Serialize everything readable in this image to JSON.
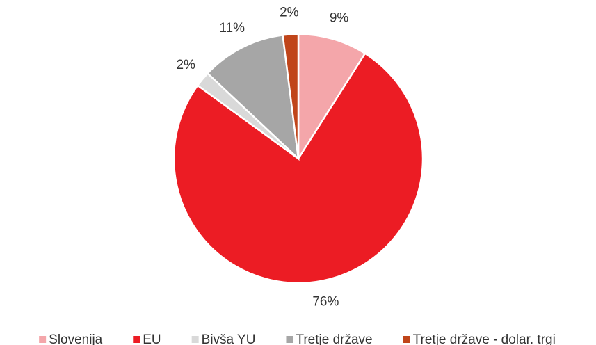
{
  "chart_data": {
    "type": "pie",
    "categories": [
      "Slovenija",
      "EU",
      "Bivša YU",
      "Tretje države",
      "Tretje države - dolar. trgi"
    ],
    "values": [
      9,
      76,
      2,
      11,
      2
    ],
    "value_labels": [
      "9%",
      "76%",
      "2%",
      "11%",
      "2%"
    ],
    "colors": [
      "#f4a6aa",
      "#ec1c24",
      "#d9d9d9",
      "#a6a6a6",
      "#c0451a"
    ],
    "legend": "bottom"
  }
}
